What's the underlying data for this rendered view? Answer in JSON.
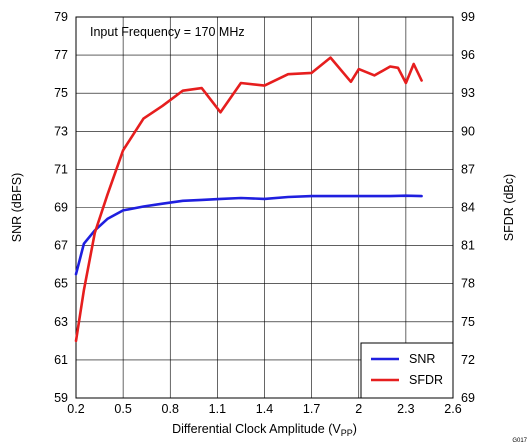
{
  "chart_data": {
    "type": "line",
    "annotation": "Input Frequency = 170 MHz",
    "xlabel_main": "Differential Clock Amplitude (V",
    "xlabel_sub": "PP",
    "xlabel_end": ")",
    "ylabel_left": "SNR (dBFS)",
    "ylabel_right": "SFDR (dBc)",
    "figure_id": "G017",
    "xlim": [
      0.2,
      2.6
    ],
    "ylim_left": [
      59,
      79
    ],
    "ylim_right": [
      69,
      99
    ],
    "xticks": [
      "0.2",
      "0.5",
      "0.8",
      "1.1",
      "1.4",
      "1.7",
      "2",
      "2.3",
      "2.6"
    ],
    "yticks_left": [
      "59",
      "61",
      "63",
      "65",
      "67",
      "69",
      "71",
      "73",
      "75",
      "77",
      "79"
    ],
    "yticks_right": [
      "69",
      "72",
      "75",
      "78",
      "81",
      "84",
      "87",
      "90",
      "93",
      "96",
      "99"
    ],
    "grid": true,
    "legend_position": "bottom-right",
    "series": [
      {
        "name": "SNR",
        "axis": "left",
        "color": "#1f1fdf",
        "x": [
          0.2,
          0.25,
          0.32,
          0.4,
          0.5,
          0.63,
          0.75,
          0.88,
          1.0,
          1.12,
          1.25,
          1.4,
          1.55,
          1.7,
          1.82,
          1.95,
          2.0,
          2.1,
          2.2,
          2.3,
          2.4
        ],
        "y": [
          65.5,
          67.1,
          67.8,
          68.4,
          68.85,
          69.05,
          69.2,
          69.35,
          69.4,
          69.45,
          69.5,
          69.45,
          69.55,
          69.6,
          69.6,
          69.6,
          69.6,
          69.6,
          69.6,
          69.62,
          69.6
        ]
      },
      {
        "name": "SFDR",
        "axis": "right",
        "color": "#e61e1e",
        "x": [
          0.2,
          0.25,
          0.32,
          0.4,
          0.5,
          0.63,
          0.75,
          0.88,
          1.0,
          1.12,
          1.25,
          1.4,
          1.55,
          1.7,
          1.82,
          1.95,
          2.0,
          2.1,
          2.2,
          2.25,
          2.3,
          2.35,
          2.4
        ],
        "y": [
          73.5,
          77.5,
          82.0,
          85.0,
          88.5,
          91.0,
          92.0,
          93.2,
          93.4,
          91.5,
          93.8,
          93.6,
          94.5,
          94.6,
          95.8,
          93.9,
          94.9,
          94.4,
          95.1,
          95.0,
          93.8,
          95.3,
          94.0
        ]
      }
    ]
  }
}
